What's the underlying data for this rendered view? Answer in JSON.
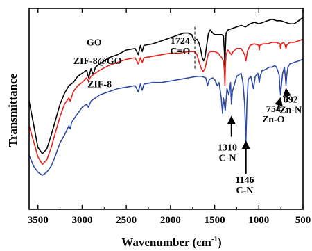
{
  "chart_data": {
    "type": "line",
    "xlabel": "Wavenumber (cm",
    "xlabel_sup": "-1",
    "xlabel_close": ")",
    "ylabel": "Transmittance",
    "xlim": [
      3600,
      500
    ],
    "x_reversed": true,
    "x_ticks": [
      3500,
      3000,
      2500,
      2000,
      1500,
      1000,
      500
    ],
    "y_ticks_shown": false,
    "grid": false,
    "series": [
      {
        "name": "GO",
        "color": "#000000",
        "x": [
          3600,
          3550,
          3500,
          3450,
          3400,
          3350,
          3300,
          3250,
          3200,
          3150,
          3100,
          3050,
          3000,
          2950,
          2925,
          2900,
          2875,
          2850,
          2800,
          2700,
          2600,
          2500,
          2400,
          2365,
          2340,
          2320,
          2300,
          2200,
          2100,
          2000,
          1900,
          1850,
          1800,
          1760,
          1740,
          1724,
          1700,
          1680,
          1660,
          1640,
          1625,
          1610,
          1590,
          1570,
          1550,
          1520,
          1500,
          1450,
          1420,
          1400,
          1390,
          1384,
          1378,
          1370,
          1350,
          1300,
          1250,
          1200,
          1150,
          1100,
          1050,
          1000,
          950,
          900,
          850,
          800,
          750,
          700,
          650,
          600,
          550,
          500
        ],
        "y": [
          0.4,
          0.25,
          0.1,
          0.06,
          0.09,
          0.18,
          0.28,
          0.38,
          0.45,
          0.5,
          0.52,
          0.56,
          0.58,
          0.6,
          0.55,
          0.61,
          0.57,
          0.62,
          0.64,
          0.68,
          0.7,
          0.73,
          0.74,
          0.7,
          0.76,
          0.72,
          0.76,
          0.77,
          0.79,
          0.81,
          0.83,
          0.84,
          0.84,
          0.83,
          0.8,
          0.79,
          0.8,
          0.78,
          0.74,
          0.68,
          0.66,
          0.68,
          0.76,
          0.84,
          0.86,
          0.84,
          0.83,
          0.83,
          0.83,
          0.82,
          0.72,
          0.62,
          0.74,
          0.84,
          0.86,
          0.87,
          0.88,
          0.89,
          0.88,
          0.9,
          0.91,
          0.9,
          0.91,
          0.92,
          0.93,
          0.92,
          0.92,
          0.91,
          0.9,
          0.9,
          0.92,
          0.94
        ]
      },
      {
        "name": "ZIF-8@GO",
        "color": "#e8221b",
        "x": [
          3600,
          3550,
          3500,
          3450,
          3400,
          3350,
          3300,
          3250,
          3200,
          3150,
          3135,
          3100,
          3050,
          3000,
          2950,
          2930,
          2900,
          2850,
          2800,
          2700,
          2600,
          2500,
          2400,
          2365,
          2340,
          2320,
          2300,
          2200,
          2100,
          2000,
          1900,
          1800,
          1724,
          1700,
          1680,
          1650,
          1630,
          1610,
          1590,
          1570,
          1550,
          1500,
          1460,
          1420,
          1400,
          1390,
          1384,
          1378,
          1370,
          1350,
          1310,
          1290,
          1250,
          1200,
          1160,
          1146,
          1130,
          1100,
          1050,
          1000,
          995,
          990,
          950,
          900,
          850,
          800,
          760,
          754,
          745,
          720,
          700,
          692,
          685,
          650,
          600,
          550,
          500
        ],
        "y": [
          0.24,
          0.14,
          0.04,
          -0.01,
          0.02,
          0.1,
          0.2,
          0.3,
          0.38,
          0.42,
          0.4,
          0.46,
          0.5,
          0.52,
          0.55,
          0.53,
          0.56,
          0.58,
          0.6,
          0.63,
          0.65,
          0.67,
          0.68,
          0.64,
          0.68,
          0.65,
          0.68,
          0.69,
          0.7,
          0.71,
          0.71,
          0.72,
          0.72,
          0.7,
          0.66,
          0.61,
          0.59,
          0.61,
          0.66,
          0.71,
          0.72,
          0.72,
          0.71,
          0.68,
          0.66,
          0.6,
          0.5,
          0.62,
          0.7,
          0.73,
          0.7,
          0.72,
          0.74,
          0.74,
          0.7,
          0.66,
          0.72,
          0.76,
          0.77,
          0.76,
          0.73,
          0.76,
          0.77,
          0.77,
          0.78,
          0.78,
          0.77,
          0.74,
          0.77,
          0.78,
          0.76,
          0.74,
          0.76,
          0.78,
          0.78,
          0.79,
          0.8
        ]
      },
      {
        "name": "ZIF-8",
        "color": "#2e4aa3",
        "x": [
          3600,
          3550,
          3500,
          3450,
          3400,
          3350,
          3300,
          3250,
          3200,
          3150,
          3135,
          3120,
          3100,
          3050,
          3000,
          2950,
          2930,
          2900,
          2850,
          2800,
          2700,
          2600,
          2500,
          2400,
          2365,
          2340,
          2320,
          2300,
          2200,
          2100,
          2000,
          1900,
          1800,
          1700,
          1650,
          1600,
          1580,
          1560,
          1520,
          1500,
          1470,
          1450,
          1425,
          1410,
          1400,
          1380,
          1360,
          1340,
          1320,
          1310,
          1300,
          1280,
          1250,
          1200,
          1180,
          1160,
          1146,
          1135,
          1120,
          1090,
          1060,
          1040,
          1010,
          995,
          985,
          960,
          940,
          910,
          880,
          850,
          820,
          800,
          770,
          760,
          754,
          745,
          730,
          710,
          700,
          692,
          685,
          670,
          650,
          600,
          550,
          500
        ],
        "y": [
          0.05,
          -0.02,
          -0.06,
          -0.08,
          -0.06,
          -0.02,
          0.05,
          0.13,
          0.18,
          0.24,
          0.22,
          0.26,
          0.28,
          0.32,
          0.36,
          0.38,
          0.36,
          0.4,
          0.42,
          0.44,
          0.46,
          0.48,
          0.49,
          0.5,
          0.46,
          0.51,
          0.47,
          0.51,
          0.52,
          0.52,
          0.53,
          0.54,
          0.55,
          0.56,
          0.56,
          0.55,
          0.5,
          0.54,
          0.55,
          0.54,
          0.5,
          0.52,
          0.42,
          0.32,
          0.42,
          0.34,
          0.48,
          0.44,
          0.52,
          0.38,
          0.46,
          0.5,
          0.56,
          0.58,
          0.52,
          0.38,
          0.13,
          0.38,
          0.54,
          0.56,
          0.48,
          0.56,
          0.58,
          0.52,
          0.56,
          0.6,
          0.6,
          0.61,
          0.62,
          0.62,
          0.63,
          0.62,
          0.57,
          0.48,
          0.44,
          0.5,
          0.58,
          0.62,
          0.56,
          0.5,
          0.56,
          0.62,
          0.64,
          0.65,
          0.66,
          0.67
        ]
      }
    ],
    "series_labels": [
      {
        "text": "GO",
        "x": 2950,
        "y": 0.76
      },
      {
        "text": "ZIF-8@GO",
        "x": 3100,
        "y": 0.64
      },
      {
        "text": "ZIF-8",
        "x": 2940,
        "y": 0.49
      }
    ],
    "annotations": [
      {
        "lines": [
          "1724",
          "C=O"
        ],
        "x": 1890,
        "y": 0.77,
        "anchor": "middle"
      },
      {
        "lines": [
          "1310",
          "C-N"
        ],
        "x": 1355,
        "y": 0.08,
        "anchor": "middle",
        "arrow_to": {
          "x": 1310,
          "y": 0.3
        },
        "arrow_from": {
          "x": 1310,
          "y": 0.17
        }
      },
      {
        "lines": [
          "1146",
          "C-N"
        ],
        "x": 1160,
        "y": -0.13,
        "anchor": "middle",
        "arrow_to": {
          "x": 1146,
          "y": 0.14
        },
        "arrow_from": {
          "x": 1146,
          "y": -0.07
        }
      },
      {
        "lines": [
          "754",
          "Zn-O"
        ],
        "x": 835,
        "y": 0.33,
        "anchor": "middle",
        "arrow_to": {
          "x": 754,
          "y": 0.42
        },
        "arrow_from": {
          "x": 790,
          "y": 0.34
        }
      },
      {
        "lines": [
          "692",
          "Zn-N"
        ],
        "x": 640,
        "y": 0.39,
        "anchor": "middle",
        "arrow_to": {
          "x": 692,
          "y": 0.48
        },
        "arrow_from": {
          "x": 675,
          "y": 0.41
        }
      }
    ],
    "dashed_line": {
      "x": 1724,
      "y_from": 0.88,
      "y_to": 0.6
    }
  }
}
